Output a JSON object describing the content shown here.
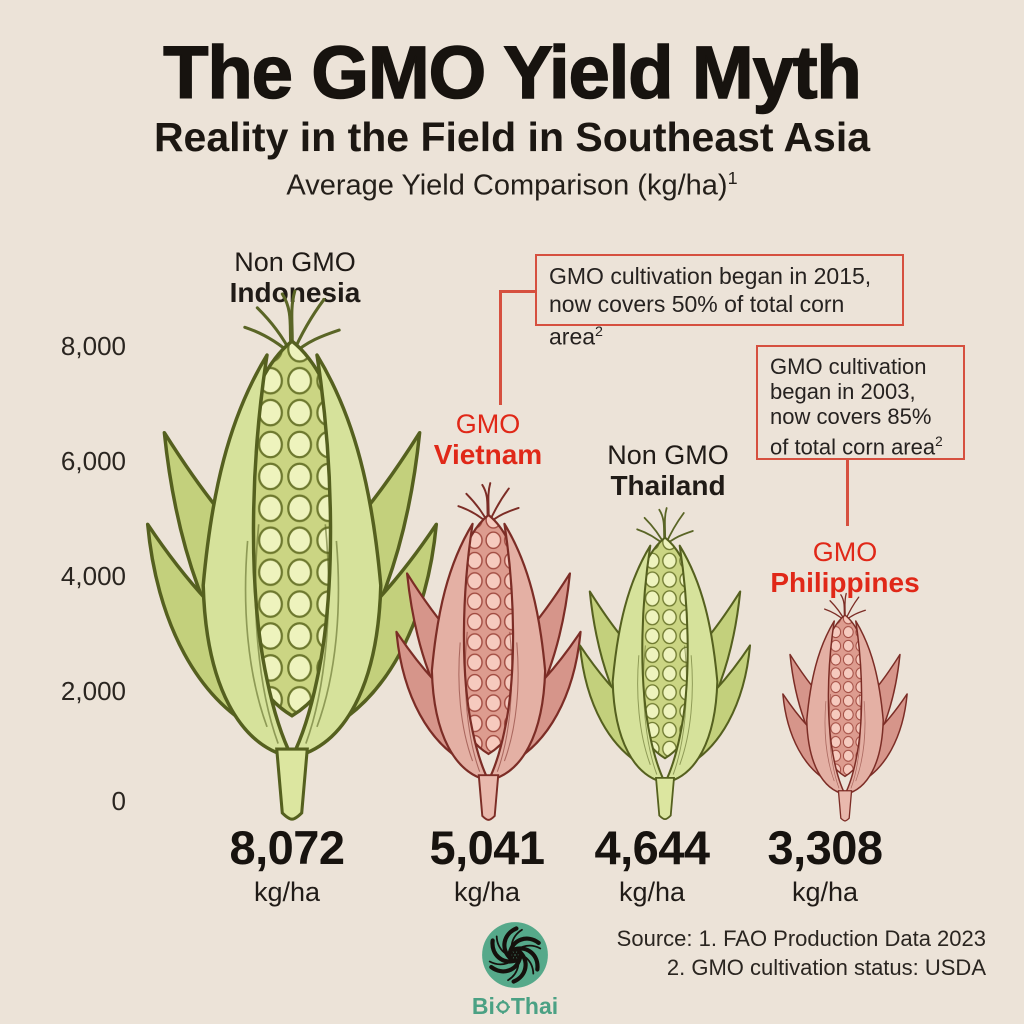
{
  "header": {
    "title": "The GMO Yield Myth",
    "subtitle": "Reality in the Field in Southeast Asia",
    "axis_title": "Average Yield Comparison (kg/ha)",
    "axis_title_superscript": "1"
  },
  "y_axis": {
    "ticks": [
      "8,000",
      "6,000",
      "4,000",
      "2,000",
      "0"
    ]
  },
  "columns": [
    {
      "type_label": "Non GMO",
      "country": "Indonesia",
      "value": "8,072",
      "unit": "kg/ha",
      "variant": "non-gmo"
    },
    {
      "type_label": "GMO",
      "country": "Vietnam",
      "value": "5,041",
      "unit": "kg/ha",
      "variant": "gmo"
    },
    {
      "type_label": "Non GMO",
      "country": "Thailand",
      "value": "4,644",
      "unit": "kg/ha",
      "variant": "non-gmo"
    },
    {
      "type_label": "GMO",
      "country": "Philippines",
      "value": "3,308",
      "unit": "kg/ha",
      "variant": "gmo"
    }
  ],
  "callouts": [
    {
      "lines": [
        "GMO cultivation began in 2015,",
        "now covers 50% of total corn area"
      ],
      "superscript": "2",
      "target_country": "Vietnam"
    },
    {
      "lines": [
        "GMO cultivation",
        "began in 2003,",
        "now covers 85%",
        "of total corn area"
      ],
      "superscript": "2",
      "target_country": "Philippines"
    }
  ],
  "footer": {
    "source_line1": "Source: 1. FAO Production Data 2023",
    "source_line2": "2. GMO cultivation status: USDA",
    "logo_text_bi": "Bi",
    "logo_text_thai": "Thai",
    "logo_name": "BioThai"
  },
  "colors": {
    "background": "#ece3d8",
    "text": "#201b17",
    "red_accent": "#e02818",
    "callout_border": "#d6503f",
    "logo_green": "#56a98a",
    "corn_green": {
      "outline": "#55601f",
      "tassel": "#5a6526",
      "leafOuter": "#c3d07c",
      "leafInner": "#d6e29b",
      "cobBase": "#cbd583",
      "kernel": "#eef3bd",
      "kernelStroke": "#6d782e",
      "stem": "#dce6a0"
    },
    "corn_red": {
      "outline": "#7c2d26",
      "tassel": "#7c2d26",
      "leafOuter": "#d6958a",
      "leafInner": "#e4b0a4",
      "cobBase": "#dd9c8f",
      "kernel": "#f6cabe",
      "kernelStroke": "#a04a40",
      "stem": "#e9b9ad"
    }
  },
  "chart_data": {
    "type": "bar",
    "title": "The GMO Yield Myth",
    "subtitle": "Reality in the Field in Southeast Asia",
    "axis_label": "Average Yield Comparison (kg/ha)",
    "categories": [
      "Indonesia",
      "Vietnam",
      "Thailand",
      "Philippines"
    ],
    "series": [
      {
        "name": "Average yield (kg/ha)",
        "values": [
          8072,
          5041,
          4644,
          3308
        ]
      }
    ],
    "bar_group_labels": [
      "Non GMO",
      "GMO",
      "Non GMO",
      "GMO"
    ],
    "unit": "kg/ha",
    "ylim": [
      0,
      8000
    ],
    "yticks": [
      8000,
      6000,
      4000,
      2000,
      0
    ],
    "grid": false,
    "legend": "none",
    "annotations": [
      "GMO cultivation began in 2015, now covers 50% of total corn area (Vietnam)",
      "GMO cultivation began in 2003, now covers 85% of total corn area (Philippines)"
    ],
    "sources": [
      "1. FAO Production Data 2023",
      "2. GMO cultivation status: USDA"
    ]
  }
}
